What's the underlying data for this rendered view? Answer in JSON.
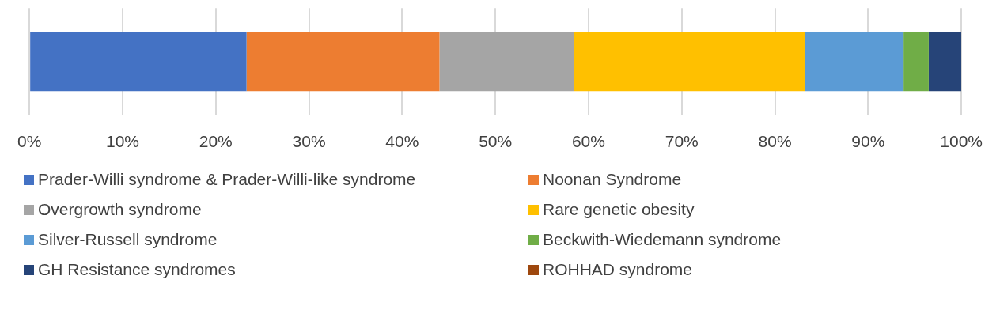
{
  "chart_data": {
    "type": "bar",
    "orientation": "horizontal",
    "stacked": true,
    "categories": [
      null
    ],
    "series": [
      {
        "name": "Prader-Willi syndrome & Prader-Willi-like syndrome",
        "color": "#4472c4",
        "values": [
          23.3
        ]
      },
      {
        "name": "Noonan Syndrome",
        "color": "#ed7d31",
        "values": [
          20.7
        ]
      },
      {
        "name": "Overgrowth syndrome",
        "color": "#a5a5a5",
        "values": [
          14.4
        ]
      },
      {
        "name": "Rare genetic obesity",
        "color": "#ffc000",
        "values": [
          24.8
        ]
      },
      {
        "name": "Silver-Russell syndrome",
        "color": "#5b9bd5",
        "values": [
          10.6
        ]
      },
      {
        "name": "Beckwith-Wiedemann syndrome",
        "color": "#70ad47",
        "values": [
          2.7
        ]
      },
      {
        "name": "GH Resistance syndromes",
        "color": "#264478",
        "values": [
          3.5
        ]
      },
      {
        "name": "ROHHAD syndrome",
        "color": "#9e480e",
        "values": [
          0
        ]
      }
    ],
    "xlim": [
      0,
      100
    ],
    "xticks": [
      {
        "value": 0,
        "label": "0%"
      },
      {
        "value": 10,
        "label": "10%"
      },
      {
        "value": 20,
        "label": "20%"
      },
      {
        "value": 30,
        "label": "30%"
      },
      {
        "value": 40,
        "label": "40%"
      },
      {
        "value": 50,
        "label": "50%"
      },
      {
        "value": 60,
        "label": "60%"
      },
      {
        "value": 70,
        "label": "70%"
      },
      {
        "value": 80,
        "label": "80%"
      },
      {
        "value": 90,
        "label": "90%"
      },
      {
        "value": 100,
        "label": "100%"
      }
    ],
    "grid": "x",
    "legend": "bottom"
  }
}
